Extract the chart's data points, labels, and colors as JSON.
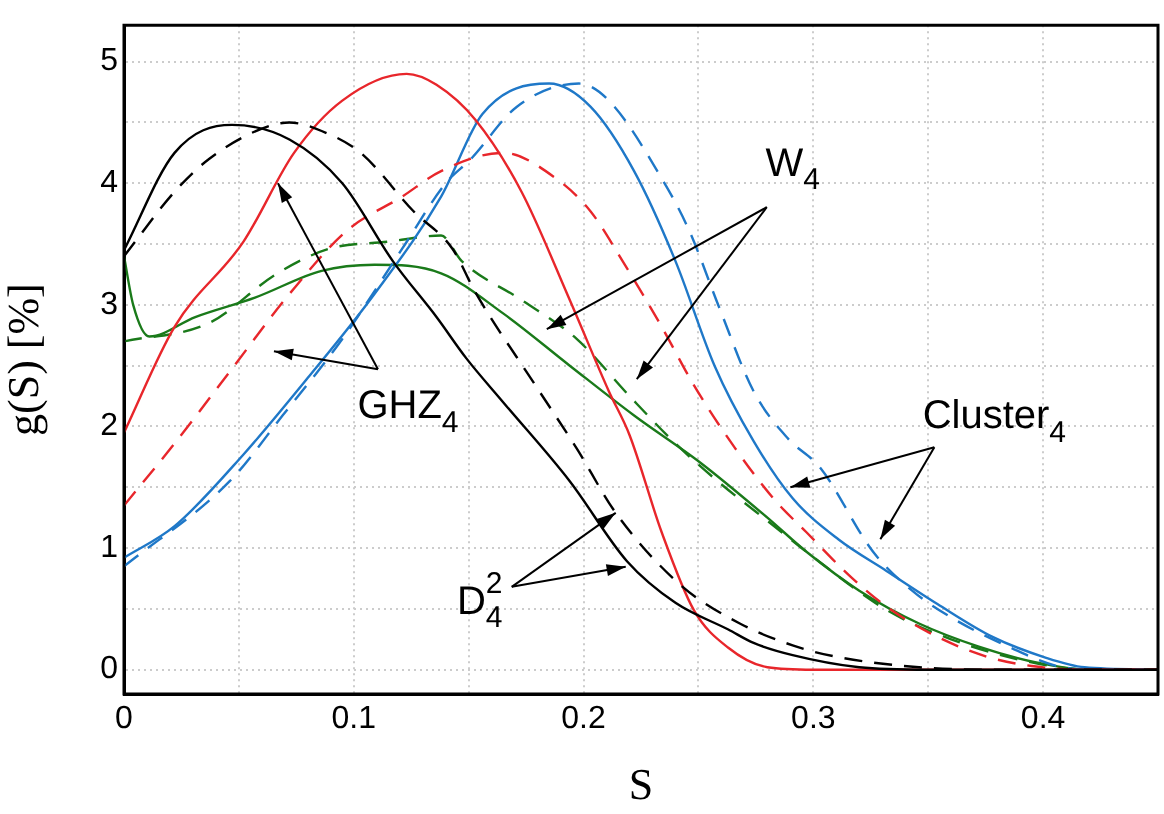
{
  "chart_data": {
    "type": "line",
    "xlabel": "S",
    "ylabel": "g(S) [%]",
    "xlim": [
      0,
      0.45
    ],
    "ylim": [
      -0.2,
      5.3
    ],
    "xticks": [
      0,
      {
        "value": 0.05,
        "label": null
      },
      0.1,
      {
        "value": 0.15,
        "label": null
      },
      0.2,
      {
        "value": 0.25,
        "label": null
      },
      0.3,
      {
        "value": 0.35,
        "label": null
      },
      0.4,
      {
        "value": 0.45,
        "label": null
      }
    ],
    "yticks": [
      0,
      {
        "value": 0.5,
        "label": null
      },
      1,
      {
        "value": 1.5,
        "label": null
      },
      2,
      {
        "value": 2.5,
        "label": null
      },
      3,
      {
        "value": 3.5,
        "label": null
      },
      4,
      {
        "value": 4.5,
        "label": null
      },
      5
    ],
    "grid": true,
    "legend": false,
    "marker": "none",
    "series": [
      {
        "color": "#000000",
        "line_style": "solid",
        "x": [
          0,
          0.022,
          0.047,
          0.072,
          0.095,
          0.117,
          0.136,
          0.149,
          0.165,
          0.194,
          0.219,
          0.24,
          0.263,
          0.274,
          0.291,
          0.32,
          0.35,
          0.4,
          0.45
        ],
        "values": [
          3.45,
          4.25,
          4.48,
          4.36,
          4.0,
          3.36,
          2.9,
          2.56,
          2.2,
          1.55,
          0.89,
          0.55,
          0.33,
          0.22,
          0.12,
          0.02,
          0,
          0,
          0
        ]
      },
      {
        "color": "#000000",
        "line_style": "dashed",
        "x": [
          0,
          0.022,
          0.037,
          0.06,
          0.072,
          0.086,
          0.103,
          0.126,
          0.143,
          0.153,
          0.179,
          0.197,
          0.214,
          0.242,
          0.268,
          0.291,
          0.309,
          0.346,
          0.38,
          0.45
        ],
        "values": [
          3.4,
          3.93,
          4.2,
          4.45,
          4.5,
          4.43,
          4.25,
          3.77,
          3.46,
          3.1,
          2.34,
          1.82,
          1.29,
          0.7,
          0.38,
          0.2,
          0.11,
          0.02,
          0,
          0
        ]
      },
      {
        "color": "#e8262b",
        "line_style": "solid",
        "x": [
          0,
          0.022,
          0.052,
          0.074,
          0.095,
          0.123,
          0.136,
          0.153,
          0.173,
          0.194,
          0.211,
          0.22,
          0.234,
          0.248,
          0.263,
          0.28,
          0.3,
          0.45
        ],
        "values": [
          1.95,
          2.82,
          3.52,
          4.25,
          4.68,
          4.9,
          4.81,
          4.52,
          3.93,
          3.04,
          2.29,
          1.93,
          1.13,
          0.49,
          0.18,
          0.02,
          0,
          0
        ]
      },
      {
        "color": "#e8262b",
        "line_style": "dashed",
        "x": [
          0,
          0.022,
          0.046,
          0.072,
          0.097,
          0.121,
          0.138,
          0.165,
          0.188,
          0.203,
          0.217,
          0.234,
          0.248,
          0.266,
          0.283,
          0.297,
          0.317,
          0.334,
          0.354,
          0.375,
          0.395,
          0.42,
          0.45
        ],
        "values": [
          1.35,
          1.86,
          2.45,
          3.09,
          3.61,
          3.89,
          4.1,
          4.25,
          4.04,
          3.77,
          3.36,
          2.82,
          2.34,
          1.82,
          1.4,
          1.13,
          0.75,
          0.49,
          0.27,
          0.11,
          0.03,
          0,
          0
        ]
      },
      {
        "color": "#1f78c8",
        "line_style": "solid",
        "x": [
          0,
          0.022,
          0.052,
          0.08,
          0.109,
          0.138,
          0.156,
          0.185,
          0.203,
          0.222,
          0.24,
          0.257,
          0.274,
          0.291,
          0.311,
          0.332,
          0.354,
          0.378,
          0.401,
          0.418,
          0.45
        ],
        "values": [
          0.92,
          1.18,
          1.77,
          2.4,
          3.09,
          3.89,
          4.57,
          4.82,
          4.63,
          4.1,
          3.36,
          2.5,
          1.88,
          1.41,
          1.07,
          0.81,
          0.54,
          0.27,
          0.1,
          0.02,
          0
        ]
      },
      {
        "color": "#1f78c8",
        "line_style": "dashed",
        "x": [
          0,
          0.046,
          0.069,
          0.095,
          0.121,
          0.14,
          0.151,
          0.171,
          0.198,
          0.211,
          0.234,
          0.246,
          0.259,
          0.274,
          0.289,
          0.303,
          0.326,
          0.343,
          0.36,
          0.386,
          0.406,
          0.425,
          0.45
        ],
        "values": [
          0.85,
          1.55,
          2.09,
          2.72,
          3.46,
          4.0,
          4.2,
          4.63,
          4.82,
          4.68,
          4.04,
          3.61,
          2.98,
          2.29,
          1.9,
          1.66,
          0.97,
          0.65,
          0.43,
          0.18,
          0.03,
          0,
          0
        ]
      },
      {
        "color": "#1a7a1a",
        "line_style": "solid",
        "x": [
          0,
          0.004,
          0.011,
          0.031,
          0.057,
          0.086,
          0.109,
          0.138,
          0.165,
          0.194,
          0.222,
          0.251,
          0.28,
          0.297,
          0.32,
          0.346,
          0.372,
          0.397,
          0.42,
          0.45
        ],
        "values": [
          3.4,
          3.0,
          2.74,
          2.9,
          3.06,
          3.28,
          3.33,
          3.26,
          2.93,
          2.5,
          2.09,
          1.7,
          1.25,
          0.97,
          0.65,
          0.38,
          0.19,
          0.06,
          0,
          0
        ]
      },
      {
        "color": "#1a7a1a",
        "line_style": "dashed",
        "x": [
          0,
          0.037,
          0.066,
          0.089,
          0.115,
          0.138,
          0.147,
          0.173,
          0.197,
          0.22,
          0.24,
          0.259,
          0.283,
          0.297,
          0.332,
          0.36,
          0.395,
          0.42,
          0.45
        ],
        "values": [
          2.7,
          2.85,
          3.25,
          3.46,
          3.52,
          3.57,
          3.36,
          3.04,
          2.72,
          2.25,
          1.86,
          1.54,
          1.18,
          0.97,
          0.49,
          0.25,
          0.06,
          0,
          0
        ]
      }
    ],
    "annotations": [
      {
        "text": "GHZ$_{4}$",
        "x": 0.067,
        "y": 4.0
      },
      {
        "text": "W$_{4}$",
        "x": 0.184,
        "y": 2.8
      },
      {
        "text": "Cluster$_{4}$",
        "x": 0.29,
        "y": 1.5
      },
      {
        "text": "D$^{2}$$_{4}$",
        "x": 0.214,
        "y": 1.29
      }
    ]
  }
}
